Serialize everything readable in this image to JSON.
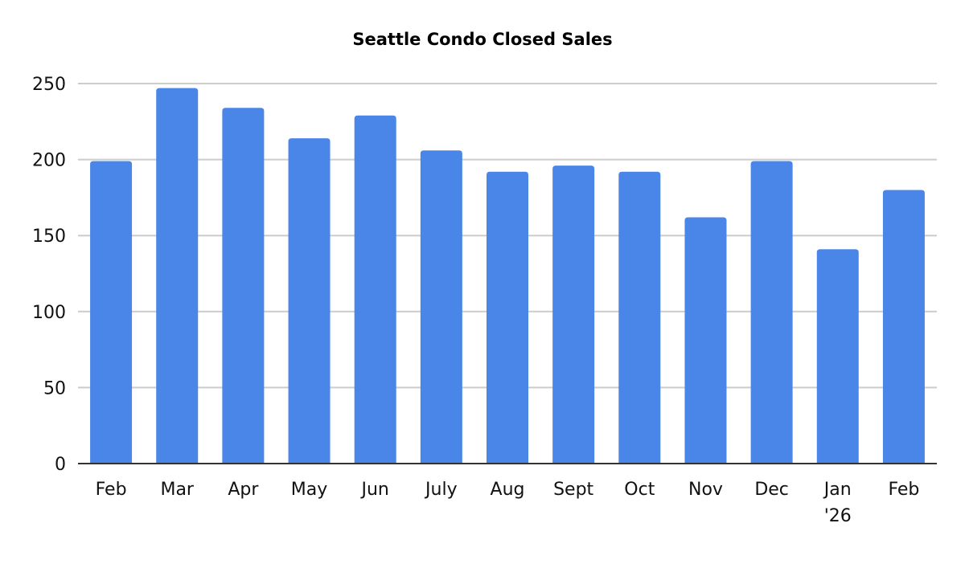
{
  "chart_data": {
    "type": "bar",
    "title": "Seattle Condo Closed Sales",
    "xlabel": "",
    "ylabel": "",
    "categories": [
      [
        "Feb"
      ],
      [
        "Mar"
      ],
      [
        "Apr"
      ],
      [
        "May"
      ],
      [
        "Jun"
      ],
      [
        "July"
      ],
      [
        "Aug"
      ],
      [
        "Sept"
      ],
      [
        "Oct"
      ],
      [
        "Nov"
      ],
      [
        "Dec"
      ],
      [
        "Jan",
        "'26"
      ],
      [
        "Feb"
      ]
    ],
    "values": [
      199,
      247,
      234,
      214,
      229,
      206,
      192,
      196,
      192,
      162,
      199,
      141,
      180
    ],
    "ylim": [
      0,
      250
    ],
    "yticks": [
      0,
      50,
      100,
      150,
      200,
      250
    ],
    "grid": true,
    "legend": "none",
    "bar_color": "#4a86e8"
  }
}
